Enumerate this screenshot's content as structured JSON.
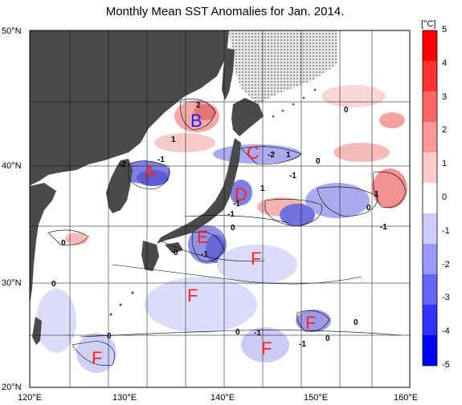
{
  "title": "Monthly Mean SST Anomalies for Jan. 2014.",
  "unit_label": "[°C]",
  "latitude_labels": [
    "50°N",
    "40°N",
    "30°N",
    "20°N"
  ],
  "longitude_labels": [
    "120°E",
    "130°E",
    "140°E",
    "150°E",
    "160°E"
  ],
  "colorbar": {
    "ticks": [
      "5",
      "4",
      "3",
      "2",
      "1",
      "0",
      "-1",
      "-2",
      "-3",
      "-4",
      "-5"
    ],
    "colors": [
      "#ff0000",
      "#ff3333",
      "#ff6666",
      "#ff9999",
      "#ffcccc",
      "#ffffff",
      "#ccccff",
      "#9999ff",
      "#6666ff",
      "#3333ff",
      "#0000ff"
    ]
  },
  "region_markers": [
    {
      "letter": "A",
      "color": "#ff2020"
    },
    {
      "letter": "B",
      "color": "#2020ff"
    },
    {
      "letter": "C",
      "color": "#ff2020"
    },
    {
      "letter": "D",
      "color": "#ff2020"
    },
    {
      "letter": "E",
      "color": "#ff2020"
    },
    {
      "letter": "F",
      "color": "#ff2020"
    },
    {
      "letter": "F",
      "color": "#ff2020"
    },
    {
      "letter": "F",
      "color": "#ff2020"
    },
    {
      "letter": "F",
      "color": "#ff2020"
    },
    {
      "letter": "F",
      "color": "#ff2020"
    }
  ],
  "contour_labels": [
    "2",
    "1",
    "-2",
    "-1",
    "-2",
    "1",
    "-1",
    "0",
    "1",
    "0",
    "-1",
    "-1",
    "-1",
    "-1",
    "0",
    "0",
    "0",
    "0",
    "0",
    "0",
    "0",
    "0",
    "-1",
    "-1",
    "1",
    "0"
  ],
  "colors": {
    "land": "#4a4a4a",
    "sea_ice": "#d0d0d0",
    "grid": "#000000",
    "warm": "#f4a0a0",
    "cool": "#a8a8ee"
  }
}
